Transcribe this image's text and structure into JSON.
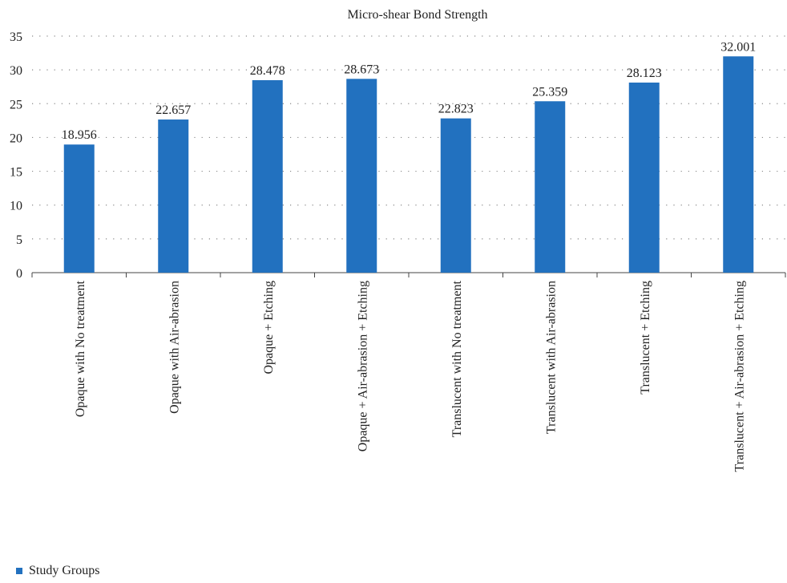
{
  "chart_data": {
    "type": "bar",
    "title": "Micro-shear Bond Strength",
    "categories": [
      "Opaque with No treatment",
      "Opaque with Air-abrasion",
      "Opaque + Etching",
      "Opaque + Air-abrasion + Etching",
      "Translucent with No treatment",
      "Translucent with Air-abrasion",
      "Translucent + Etching",
      "Translucent + Air-abrasion + Etching"
    ],
    "series": [
      {
        "name": "Study Groups",
        "values": [
          18.956,
          22.657,
          28.478,
          28.673,
          22.823,
          25.359,
          28.123,
          32.001
        ],
        "value_labels": [
          "18.956",
          "22.657",
          "28.478",
          "28.673",
          "22.823",
          "25.359",
          "28.123",
          "32.001"
        ],
        "color": "#2271bf"
      }
    ],
    "ylim": [
      0,
      35
    ],
    "yticks": [
      "0",
      "5",
      "10",
      "15",
      "20",
      "25",
      "30",
      "35"
    ],
    "grid": "dotted-horizontal",
    "legend_position": "bottom-left"
  }
}
